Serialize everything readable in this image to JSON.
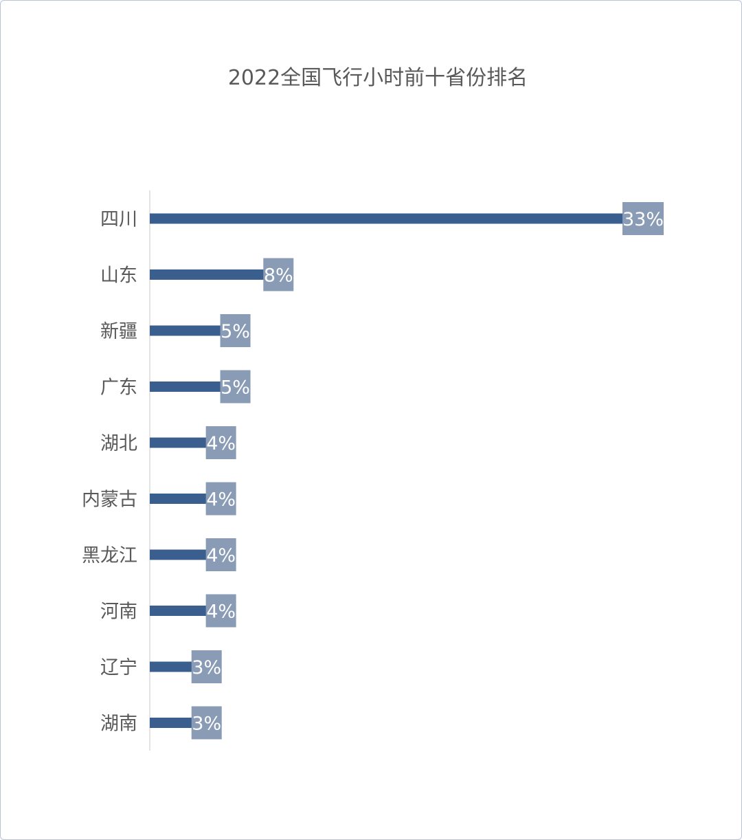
{
  "chart_data": {
    "type": "bar",
    "orientation": "horizontal",
    "title": "2022全国飞行小时前十省份排名",
    "categories": [
      "四川",
      "山东",
      "新疆",
      "广东",
      "湖北",
      "内蒙古",
      "黑龙江",
      "河南",
      "辽宁",
      "湖南"
    ],
    "values": [
      33,
      8,
      5,
      5,
      4,
      4,
      4,
      4,
      3,
      3
    ],
    "labels": [
      "33%",
      "8%",
      "5%",
      "5%",
      "4%",
      "4%",
      "4%",
      "4%",
      "3%",
      "3%"
    ],
    "xlim": [
      0,
      33
    ],
    "grid": false,
    "legend": "none"
  },
  "colors": {
    "bar": "#3a5f8f",
    "label_box": "#8a9bb5",
    "axis": "#c8c8c8",
    "frame": "#b9c3d6"
  }
}
